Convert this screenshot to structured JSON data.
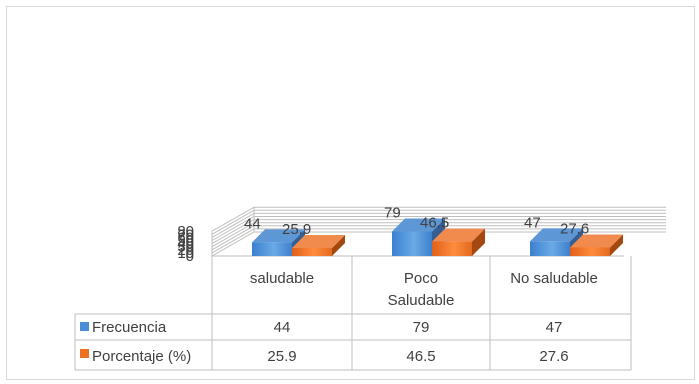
{
  "chart_data": {
    "type": "bar",
    "style": "3d-clustered-column-with-data-table",
    "categories": [
      "saludable",
      "Poco Saludable",
      "No saludable"
    ],
    "category_lines": [
      [
        "saludable"
      ],
      [
        "Poco",
        "Saludable"
      ],
      [
        "No saludable"
      ]
    ],
    "series": [
      {
        "name": "Frecuencia",
        "values": [
          44,
          79,
          47
        ],
        "labels": [
          "44",
          "79",
          "47"
        ],
        "color": "#4a8fd6"
      },
      {
        "name": "Porcentaje (%)",
        "values": [
          25.9,
          46.5,
          27.6
        ],
        "labels": [
          "25.9",
          "46.5",
          "27.6"
        ],
        "color": "#ed7021"
      }
    ],
    "y_ticks": [
      "0",
      "10",
      "20",
      "30",
      "40",
      "50",
      "60",
      "70",
      "80"
    ],
    "ylim": [
      0,
      80
    ],
    "grid": true,
    "legend": "data-table"
  }
}
